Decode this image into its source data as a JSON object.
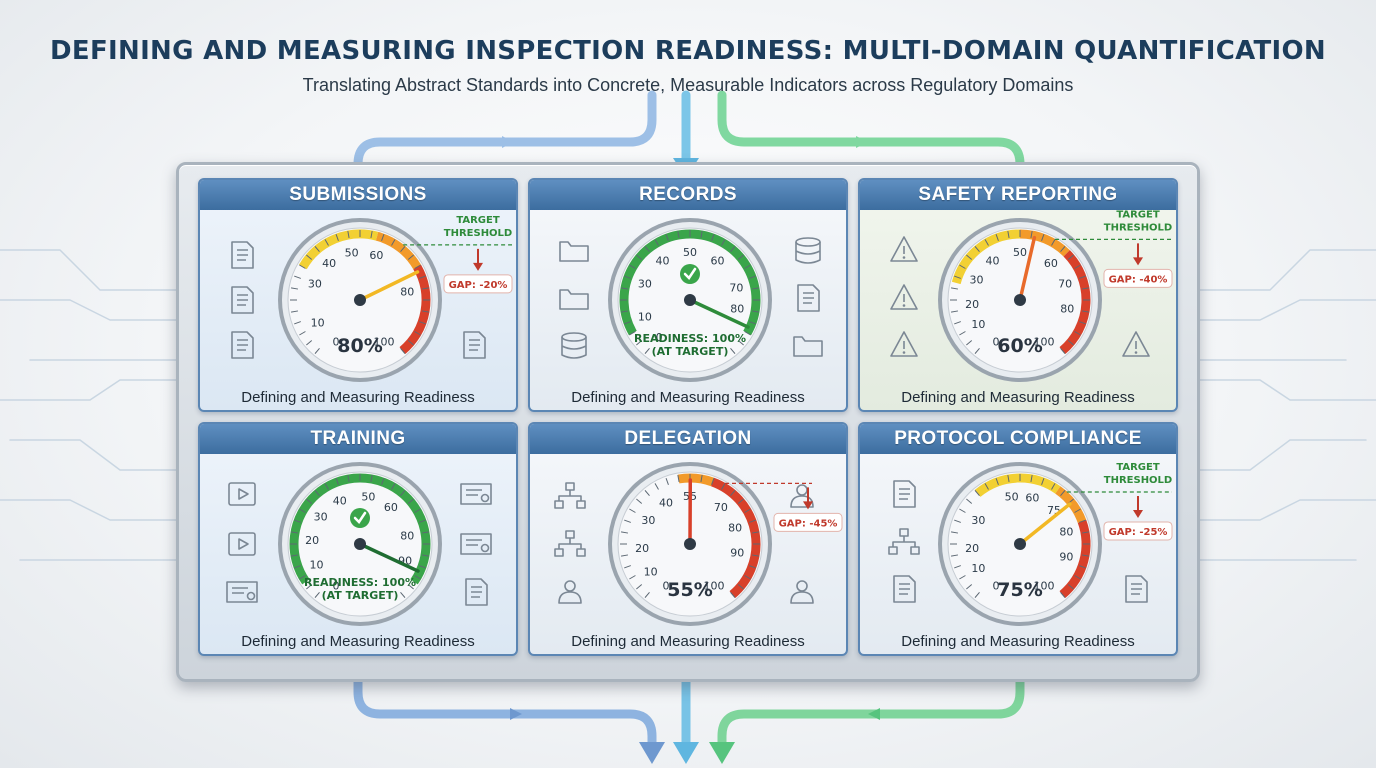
{
  "header": {
    "title": "DEFINING AND MEASURING INSPECTION READINESS: MULTI-DOMAIN QUANTIFICATION",
    "subtitle": "Translating Abstract Standards into Concrete, Measurable Indicators across Regulatory Domains"
  },
  "colors": {
    "title": "#1c3d5c",
    "panel_header": "#4a7cae",
    "flow_blue": "#7fa6d6",
    "flow_cyan": "#74c2e4",
    "flow_green": "#6fd192",
    "gauge_green": "#3aa54a",
    "gauge_yellow": "#f2c630",
    "gauge_orange": "#f08a2a",
    "gauge_red": "#d8402a",
    "gap_red": "#c0392b",
    "threshold_green": "#2e8b3a"
  },
  "panels": [
    {
      "title": "SUBMISSIONS",
      "caption": "Defining and Measuring Readiness",
      "value": 80,
      "value_label": "80%",
      "ticks": [
        "0",
        "10",
        "30",
        "40",
        "50",
        "60",
        "80",
        "100"
      ],
      "status": "gap",
      "target_label_1": "TARGET",
      "target_label_2": "THRESHOLD",
      "gap_label": "GAP: -20%",
      "icons": [
        "document-icon",
        "copy-document-icon",
        "approved-document-icon",
        "document-icon"
      ]
    },
    {
      "title": "RECORDS",
      "caption": "Defining and Measuring Readiness",
      "value": 100,
      "ticks": [
        "0",
        "10",
        "30",
        "40",
        "50",
        "60",
        "70",
        "80"
      ],
      "status": "at_target",
      "readiness_line_1": "READINESS: 100%",
      "readiness_line_2": "(AT TARGET)",
      "icons": [
        "folder-icon",
        "folder-icon",
        "database-icon",
        "database-icon",
        "edit-document-icon",
        "folder-chart-icon"
      ]
    },
    {
      "title": "SAFETY REPORTING",
      "caption": "Defining and Measuring Readiness",
      "value": 60,
      "value_label": "60%",
      "ticks": [
        "0",
        "10",
        "20",
        "30",
        "40",
        "50",
        "60",
        "70",
        "80",
        "100"
      ],
      "status": "gap",
      "target_label_1": "TARGET",
      "target_label_2": "THRESHOLD",
      "gap_label": "GAP: -40%",
      "icons": [
        "warning-icon",
        "warning-clipboard-icon",
        "warning-diamond-icon",
        "warning-document-icon"
      ]
    },
    {
      "title": "TRAINING",
      "caption": "Defining and Measuring Readiness",
      "value": 100,
      "ticks": [
        "0",
        "10",
        "20",
        "30",
        "40",
        "50",
        "60",
        "80",
        "90"
      ],
      "status": "at_target",
      "readiness_line_1": "READINESS: 100%",
      "readiness_line_2": "(AT TARGET)",
      "icons": [
        "book-icon",
        "video-icon",
        "certificate-icon",
        "certificate-icon",
        "certificate-icon",
        "document-badge-icon"
      ]
    },
    {
      "title": "DELEGATION",
      "caption": "Defining and Measuring Readiness",
      "value": 55,
      "value_label": "55%",
      "ticks": [
        "0",
        "10",
        "20",
        "30",
        "40",
        "55",
        "70",
        "80",
        "90",
        "100"
      ],
      "status": "gap",
      "gap_label": "GAP: -45%",
      "icons": [
        "org-chart-icon",
        "org-chart-icon",
        "user-refresh-icon",
        "user-org-icon",
        "users-icon"
      ]
    },
    {
      "title": "PROTOCOL COMPLIANCE",
      "caption": "Defining and Measuring Readiness",
      "value": 75,
      "value_label": "75%",
      "ticks": [
        "0",
        "10",
        "20",
        "30",
        "50",
        "60",
        "75",
        "80",
        "90",
        "100"
      ],
      "status": "gap",
      "target_label_1": "TARGET",
      "target_label_2": "THRESHOLD",
      "gap_label": "GAP: -25%",
      "icons": [
        "checklist-document-icon",
        "flowchart-icon",
        "clipboard-list-icon",
        "clipboard-check-icon"
      ]
    }
  ]
}
